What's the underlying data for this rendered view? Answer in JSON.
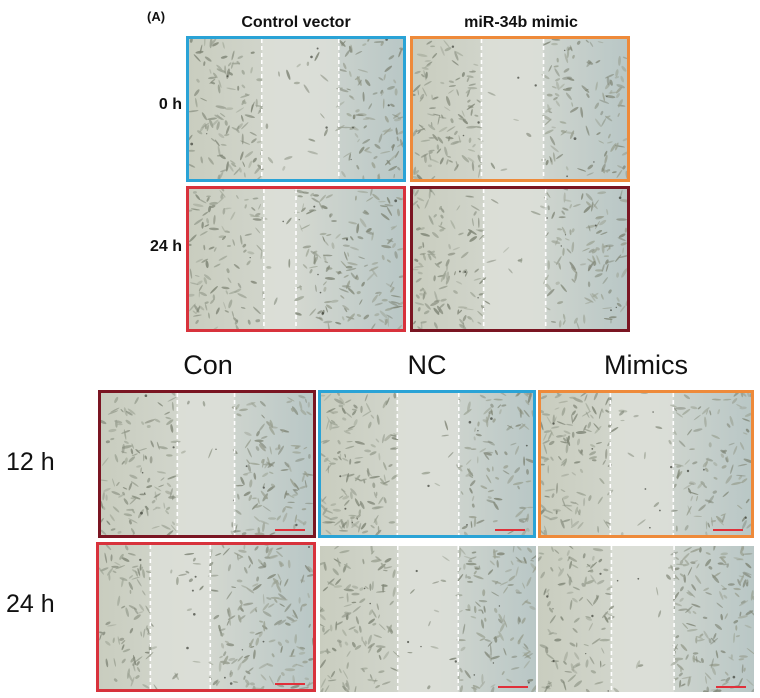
{
  "panel_a": {
    "label": "(A)",
    "columns": [
      "Control vector",
      "miR-34b mimic"
    ],
    "rows": [
      "0 h",
      "24 h"
    ]
  },
  "panel_b": {
    "columns": [
      "Con",
      "NC",
      "Mimics"
    ],
    "rows": [
      "12 h",
      "24 h"
    ]
  },
  "colors": {
    "blue": "#2aa3d6",
    "orange": "#ee8a3a",
    "red": "#d8323c",
    "dark_red": "#7a1522",
    "scale_bar": "#e0303a"
  }
}
